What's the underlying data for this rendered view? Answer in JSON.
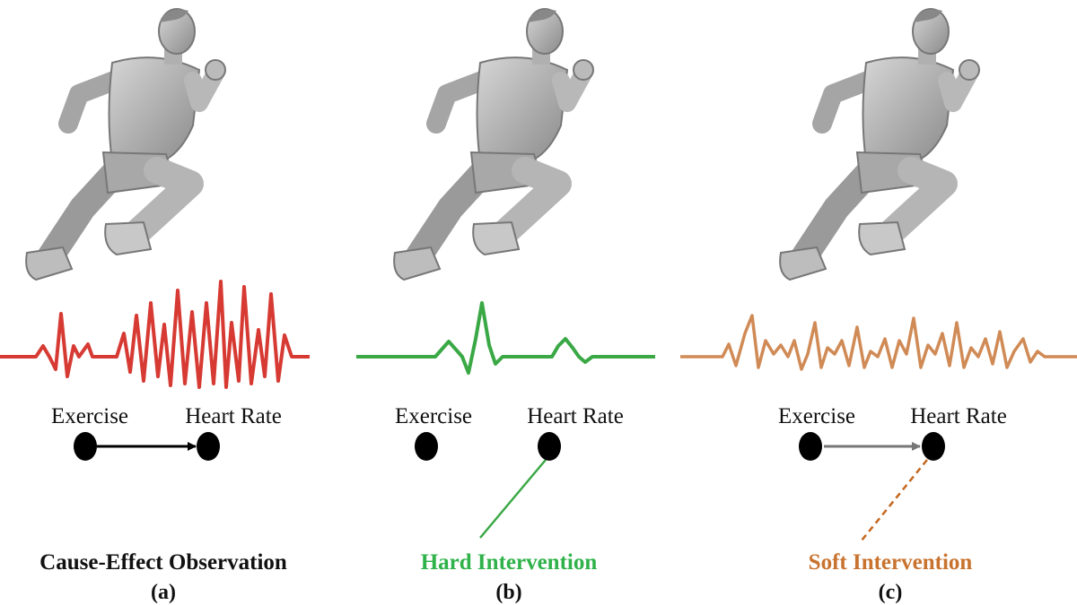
{
  "panels": [
    {
      "cause": "Exercise",
      "effect": "Heart Rate",
      "caption": "Cause-Effect Observation",
      "label": "(a)"
    },
    {
      "cause": "Exercise",
      "effect": "Heart Rate",
      "caption": "Hard Intervention",
      "label": "(b)"
    },
    {
      "cause": "Exercise",
      "effect": "Heart Rate",
      "caption": "Soft Intervention",
      "label": "(c)"
    }
  ]
}
